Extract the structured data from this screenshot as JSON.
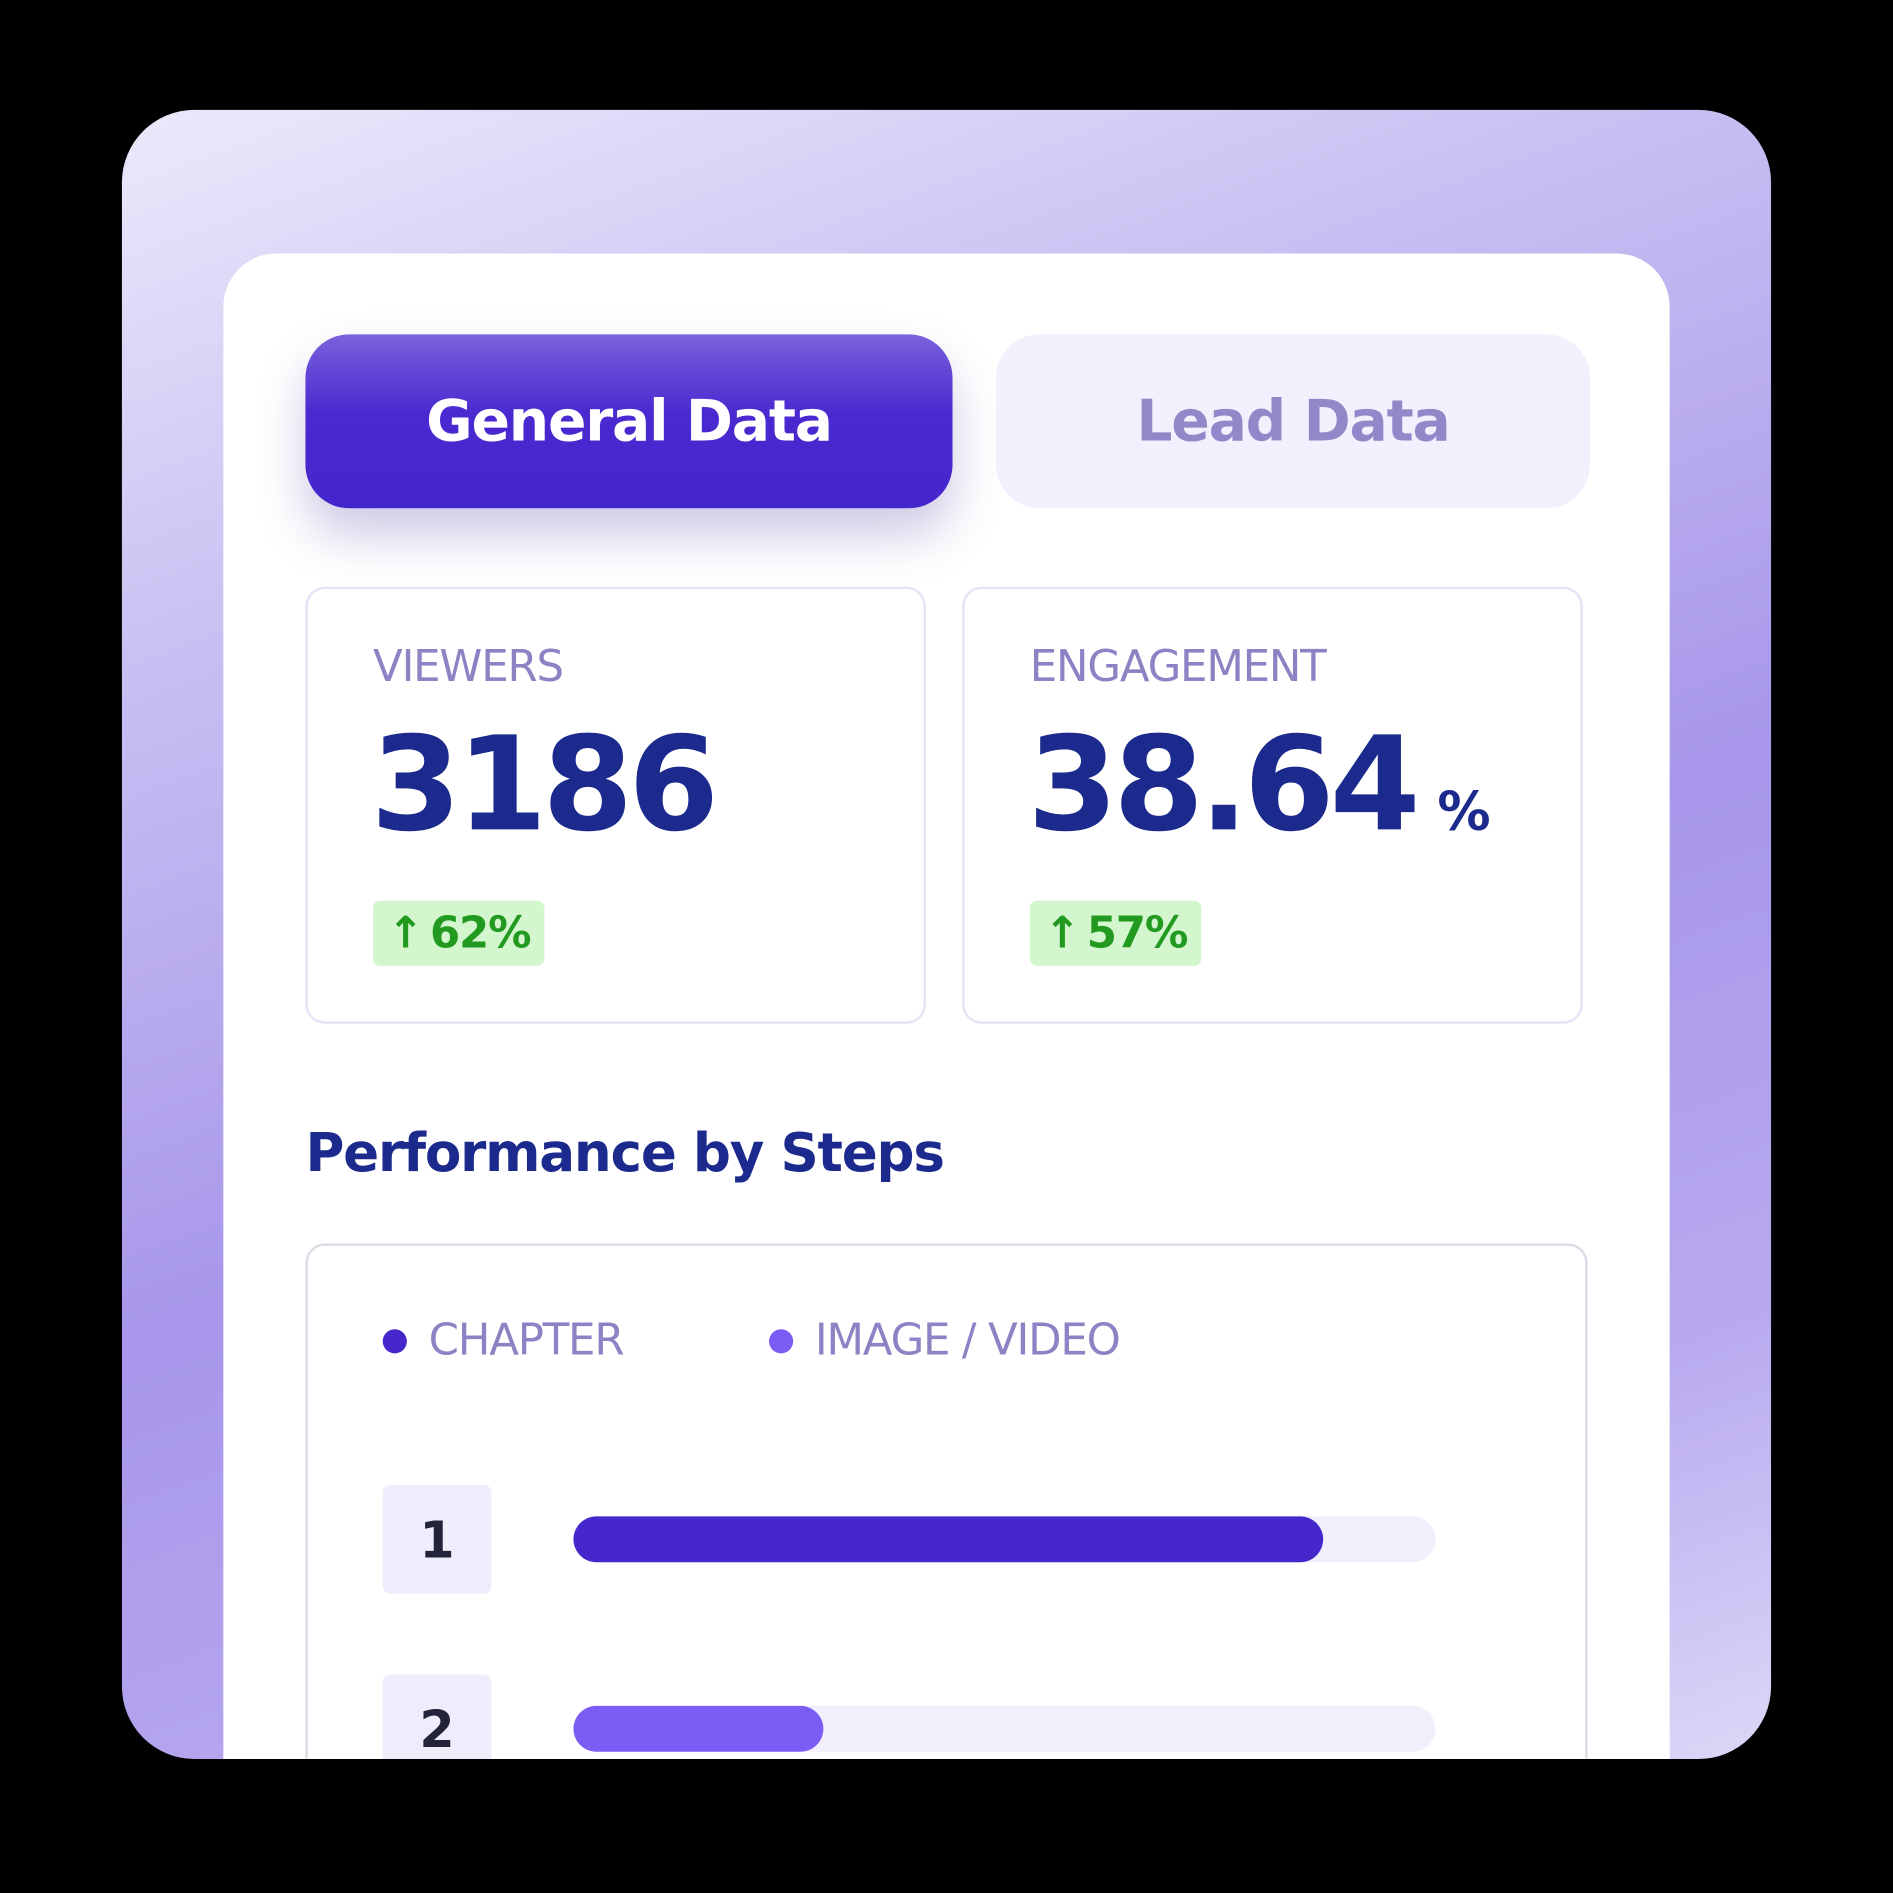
{
  "tabs": [
    {
      "label": "General Data",
      "active": true
    },
    {
      "label": "Lead Data",
      "active": false
    }
  ],
  "stats": [
    {
      "label": "VIEWERS",
      "value": "3186",
      "unit": "",
      "change": "62%",
      "change_icon": "arrow-up-icon"
    },
    {
      "label": "ENGAGEMENT",
      "value": "38.64",
      "unit": "%",
      "change": "57%",
      "change_icon": "arrow-up-icon"
    }
  ],
  "section_title": "Performance by Steps",
  "colors": {
    "accent": "#4426cc",
    "secondary": "#7b5cf5",
    "positive": "#229a1f",
    "title": "#1b2a8c"
  },
  "chart_data": {
    "type": "bar",
    "orientation": "horizontal",
    "legend": [
      {
        "name": "CHAPTER",
        "color": "#4527cc"
      },
      {
        "name": "IMAGE / VIDEO",
        "color": "#7b5cf5"
      }
    ],
    "legend_placement": "top-left",
    "categories": [
      "1",
      "2"
    ],
    "values": [
      0.87,
      0.29
    ],
    "series_of": [
      "CHAPTER",
      "IMAGE / VIDEO"
    ],
    "xlim": [
      0,
      1
    ]
  }
}
